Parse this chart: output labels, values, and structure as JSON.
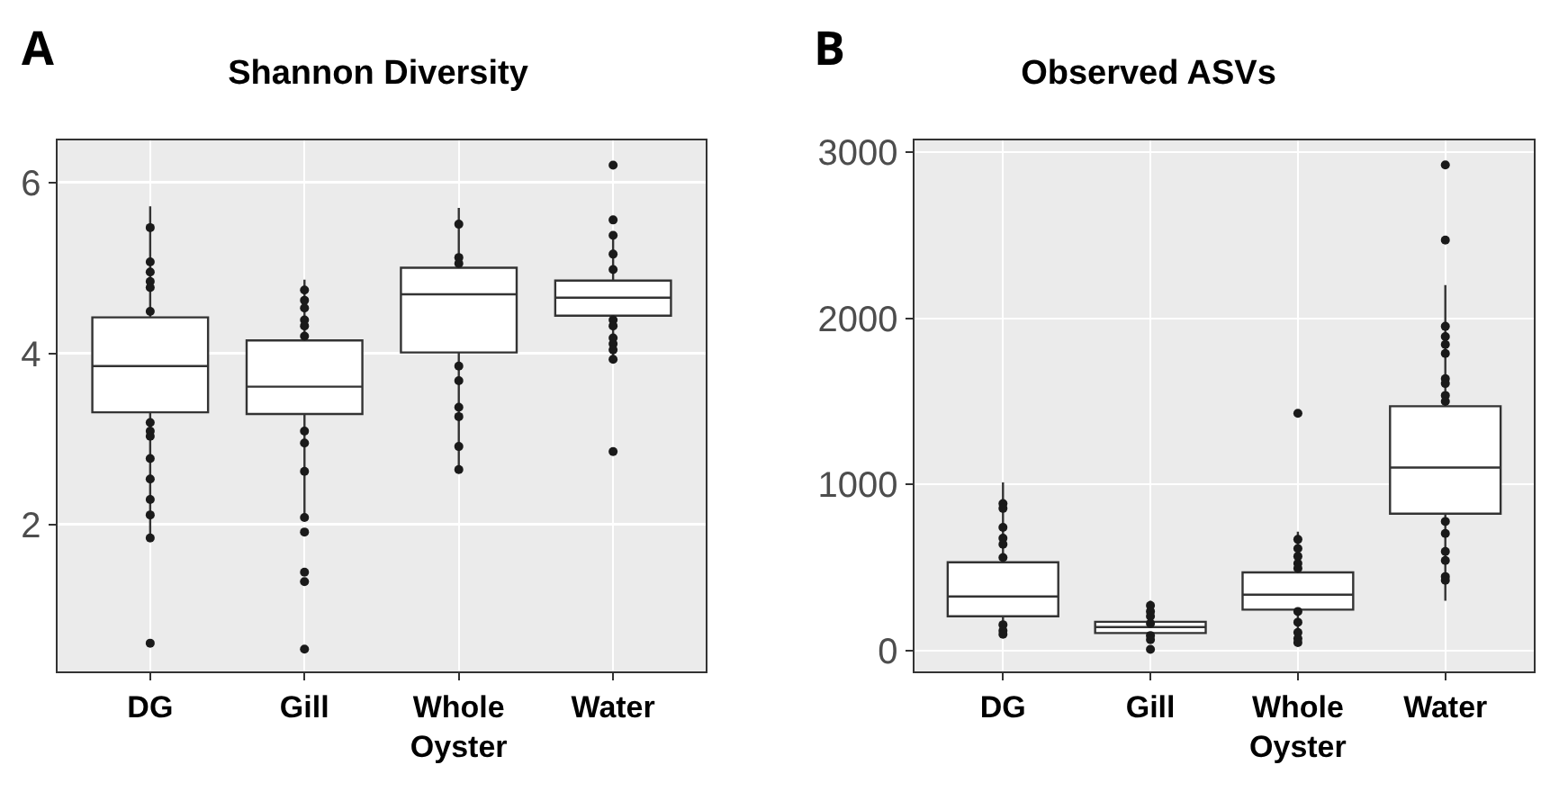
{
  "chart_data": [
    {
      "type": "box",
      "title": "Shannon Diversity",
      "annotations": [
        "A"
      ],
      "categories": [
        "DG",
        "Gill",
        "Whole Oyster",
        "Water"
      ],
      "ylim": [
        0.28,
        6.49
      ],
      "yticks": [
        2,
        4,
        6
      ],
      "grid": true,
      "boxes": [
        {
          "low": 1.84,
          "q1": 3.31,
          "median": 3.85,
          "q3": 4.42,
          "high": 5.72,
          "outliers": [
            0.61
          ]
        },
        {
          "low": 2.08,
          "q1": 3.29,
          "median": 3.61,
          "q3": 4.15,
          "high": 4.86,
          "outliers": [
            1.91,
            1.44,
            1.33,
            0.54
          ]
        },
        {
          "low": 2.64,
          "q1": 4.01,
          "median": 4.69,
          "q3": 5.0,
          "high": 5.7
        },
        {
          "low": 3.93,
          "q1": 4.44,
          "median": 4.65,
          "q3": 4.85,
          "high": 5.38,
          "outliers": [
            6.2,
            5.56,
            2.85
          ]
        }
      ],
      "series": [
        {
          "type": "scatter",
          "color": "#1a1a1a",
          "x": [
            "DG",
            "DG",
            "DG",
            "DG",
            "DG",
            "DG",
            "DG",
            "DG",
            "DG",
            "DG",
            "DG",
            "DG",
            "DG",
            "DG",
            "Gill",
            "Gill",
            "Gill",
            "Gill",
            "Gill",
            "Gill",
            "Gill",
            "Gill",
            "Gill",
            "Gill",
            "Whole Oyster",
            "Whole Oyster",
            "Whole Oyster",
            "Whole Oyster",
            "Whole Oyster",
            "Whole Oyster",
            "Whole Oyster",
            "Whole Oyster",
            "Whole Oyster",
            "Water",
            "Water",
            "Water",
            "Water",
            "Water",
            "Water",
            "Water",
            "Water",
            "Water"
          ],
          "values": [
            5.47,
            5.07,
            4.95,
            4.84,
            4.77,
            4.49,
            3.19,
            3.09,
            3.03,
            2.77,
            2.53,
            2.29,
            2.11,
            1.84,
            4.74,
            4.62,
            4.53,
            4.39,
            4.32,
            4.2,
            3.09,
            2.95,
            2.62,
            2.08,
            5.51,
            5.12,
            5.05,
            3.85,
            3.68,
            3.37,
            3.26,
            2.91,
            2.64,
            5.16,
            4.98,
            4.39,
            4.32,
            4.18,
            4.11,
            4.04,
            3.93,
            5.38
          ]
        }
      ]
    },
    {
      "type": "box",
      "title": "Observed ASVs",
      "annotations": [
        "B"
      ],
      "categories": [
        "DG",
        "Gill",
        "Whole Oyster",
        "Water"
      ],
      "ylim": [
        -126,
        3072
      ],
      "yticks": [
        0,
        1000,
        2000,
        3000
      ],
      "grid": true,
      "boxes": [
        {
          "low": 98,
          "q1": 206,
          "median": 325,
          "q3": 531,
          "high": 1012
        },
        {
          "low": 65,
          "q1": 105,
          "median": 141,
          "q3": 173,
          "high": 300,
          "outliers": [
            7
          ]
        },
        {
          "low": 47,
          "q1": 246,
          "median": 336,
          "q3": 470,
          "high": 716,
          "outliers": [
            1428
          ]
        },
        {
          "low": 300,
          "q1": 824,
          "median": 1102,
          "q3": 1471,
          "high": 2201,
          "outliers": [
            2924,
            2472
          ]
        }
      ],
      "series": [
        {
          "type": "scatter",
          "color": "#1a1a1a",
          "x": [
            "DG",
            "DG",
            "DG",
            "DG",
            "DG",
            "DG",
            "DG",
            "DG",
            "DG",
            "Gill",
            "Gill",
            "Gill",
            "Gill",
            "Gill",
            "Gill",
            "Whole Oyster",
            "Whole Oyster",
            "Whole Oyster",
            "Whole Oyster",
            "Whole Oyster",
            "Whole Oyster",
            "Whole Oyster",
            "Whole Oyster",
            "Whole Oyster",
            "Whole Oyster",
            "Water",
            "Water",
            "Water",
            "Water",
            "Water",
            "Water",
            "Water",
            "Water",
            "Water",
            "Water",
            "Water",
            "Water",
            "Water",
            "Water"
          ],
          "values": [
            885,
            856,
            741,
            676,
            640,
            560,
            155,
            119,
            98,
            271,
            235,
            206,
            163,
            90,
            65,
            669,
            614,
            567,
            524,
            495,
            235,
            170,
            108,
            72,
            47,
            1952,
            1890,
            1843,
            1789,
            1637,
            1608,
            1536,
            1500,
            777,
            705,
            596,
            542,
            445,
            423
          ]
        }
      ]
    }
  ]
}
